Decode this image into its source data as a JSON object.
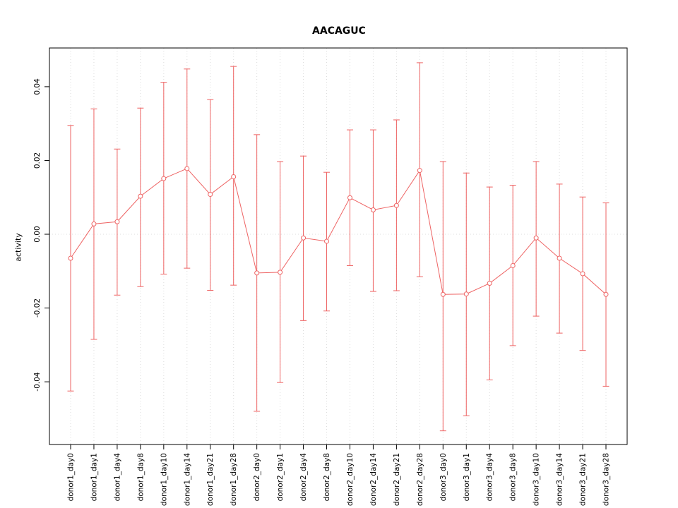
{
  "chart_data": {
    "type": "line",
    "title": "AACAGUC",
    "xlabel": "",
    "ylabel": "activity",
    "legend": "none",
    "grid": "vertical-dotted",
    "zero_line": true,
    "series_color": "#EE6363",
    "grid_color": "#DCDCDC",
    "axis_color": "#000000",
    "ylim": [
      -0.057,
      0.0505
    ],
    "yticks": [
      -0.04,
      -0.02,
      0,
      0.02,
      0.04
    ],
    "ytick_labels": [
      "-0.04",
      "-0.02",
      "0.00",
      "0.02",
      "0.04"
    ],
    "categories": [
      "donor1_day0",
      "donor1_day1",
      "donor1_day4",
      "donor1_day8",
      "donor1_day10",
      "donor1_day14",
      "donor1_day21",
      "donor1_day28",
      "donor2_day0",
      "donor2_day1",
      "donor2_day4",
      "donor2_day8",
      "donor2_day10",
      "donor2_day14",
      "donor2_day21",
      "donor2_day28",
      "donor3_day0",
      "donor3_day1",
      "donor3_day4",
      "donor3_day8",
      "donor3_day10",
      "donor3_day14",
      "donor3_day21",
      "donor3_day28"
    ],
    "values": [
      -0.0065,
      0.0028,
      0.0034,
      0.0103,
      0.0151,
      0.0178,
      0.0108,
      0.0156,
      -0.0105,
      -0.0103,
      -0.001,
      -0.0019,
      0.0099,
      0.0066,
      0.0078,
      0.0173,
      -0.0163,
      -0.0162,
      -0.0133,
      -0.0085,
      -0.001,
      -0.0065,
      -0.0107,
      -0.0163
    ],
    "error_high": [
      0.0295,
      0.034,
      0.0231,
      0.0342,
      0.0412,
      0.0448,
      0.0365,
      0.0455,
      0.027,
      0.0197,
      0.0212,
      0.0168,
      0.0283,
      0.0283,
      0.031,
      0.0465,
      0.0197,
      0.0166,
      0.0128,
      0.0133,
      0.0197,
      0.0136,
      0.0101,
      0.0085
    ],
    "error_low": [
      -0.0425,
      -0.0285,
      -0.0165,
      -0.0142,
      -0.0108,
      -0.0092,
      -0.0152,
      -0.0138,
      -0.048,
      -0.0402,
      -0.0234,
      -0.0208,
      -0.0085,
      -0.0155,
      -0.0153,
      -0.0115,
      -0.0533,
      -0.0492,
      -0.0395,
      -0.0302,
      -0.0222,
      -0.0268,
      -0.0315,
      -0.0412
    ]
  }
}
